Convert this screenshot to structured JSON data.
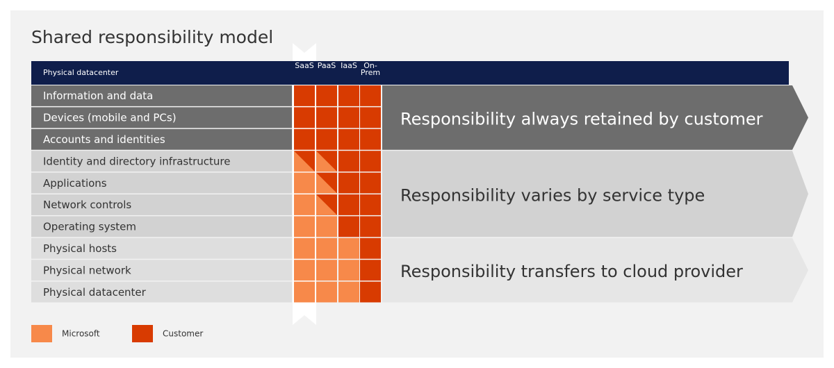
{
  "title": "Shared responsibility model",
  "header": {
    "label": "Physical datacenter",
    "columns": [
      "SaaS",
      "PaaS",
      "IaaS",
      "On-Prem"
    ]
  },
  "rows": [
    "Information and data",
    "Devices (mobile and PCs)",
    "Accounts and identities",
    "Identity and directory infrastructure",
    "Applications",
    "Network controls",
    "Operating system",
    "Physical hosts",
    "Physical network",
    "Physical datacenter"
  ],
  "groups": [
    "Responsibility always retained by customer",
    "Responsibility varies by service type",
    "Responsibility transfers to cloud provider"
  ],
  "legend": [
    "Microsoft",
    "Customer"
  ]
}
